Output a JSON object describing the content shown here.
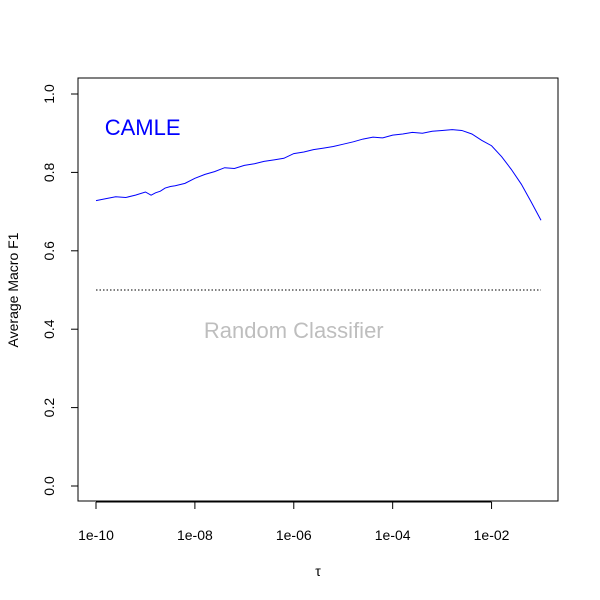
{
  "chart_data": {
    "type": "line",
    "title": "",
    "xlabel": "τ",
    "ylabel": "Average Macro F1",
    "x_scale": "log10",
    "xlim": [
      1e-10,
      0.1
    ],
    "ylim": [
      0,
      1
    ],
    "x_ticks": [
      {
        "value": 1e-10,
        "label": "1e-10"
      },
      {
        "value": 1e-08,
        "label": "1e-08"
      },
      {
        "value": 1e-06,
        "label": "1e-06"
      },
      {
        "value": 0.0001,
        "label": "1e-04"
      },
      {
        "value": 0.01,
        "label": "1e-02"
      }
    ],
    "y_ticks": [
      {
        "value": 0.0,
        "label": "0.0"
      },
      {
        "value": 0.2,
        "label": "0.2"
      },
      {
        "value": 0.4,
        "label": "0.4"
      },
      {
        "value": 0.6,
        "label": "0.6"
      },
      {
        "value": 0.8,
        "label": "0.8"
      },
      {
        "value": 1.0,
        "label": "1.0"
      }
    ],
    "grid": false,
    "series": [
      {
        "name": "CAMLE",
        "color": "#0000ff",
        "style": "solid",
        "x": [
          1e-10,
          1.6e-10,
          2.5e-10,
          4e-10,
          6.3e-10,
          1e-09,
          1.3e-09,
          1.6e-09,
          2e-09,
          2.5e-09,
          3.2e-09,
          4e-09,
          6.3e-09,
          1e-08,
          1.6e-08,
          2.5e-08,
          4e-08,
          6.3e-08,
          1e-07,
          1.6e-07,
          2.5e-07,
          4e-07,
          6.3e-07,
          1e-06,
          1.6e-06,
          2.5e-06,
          4e-06,
          6.3e-06,
          1e-05,
          1.6e-05,
          2.5e-05,
          4e-05,
          6.3e-05,
          0.0001,
          0.00016,
          0.00025,
          0.0004,
          0.00063,
          0.001,
          0.0016,
          0.0025,
          0.004,
          0.0063,
          0.01,
          0.016,
          0.025,
          0.04,
          0.063,
          0.1
        ],
        "values": [
          0.728,
          0.733,
          0.738,
          0.736,
          0.742,
          0.75,
          0.742,
          0.748,
          0.752,
          0.76,
          0.764,
          0.766,
          0.772,
          0.785,
          0.795,
          0.802,
          0.812,
          0.81,
          0.818,
          0.822,
          0.828,
          0.832,
          0.836,
          0.848,
          0.852,
          0.858,
          0.862,
          0.866,
          0.872,
          0.878,
          0.885,
          0.89,
          0.888,
          0.895,
          0.898,
          0.902,
          0.9,
          0.905,
          0.907,
          0.909,
          0.907,
          0.898,
          0.882,
          0.868,
          0.84,
          0.808,
          0.77,
          0.725,
          0.678
        ]
      },
      {
        "name": "Random Classifier",
        "color": "#000000",
        "style": "dotted",
        "x": [
          1e-10,
          0.1
        ],
        "values": [
          0.5,
          0.5
        ]
      }
    ],
    "annotations": [
      {
        "text": "CAMLE",
        "color": "#0000ff",
        "x": 1.5e-10,
        "y": 0.895,
        "size": "large"
      },
      {
        "text": "Random Classifier",
        "color": "#bebebe",
        "x": 1e-06,
        "y": 0.378,
        "size": "large"
      }
    ]
  }
}
